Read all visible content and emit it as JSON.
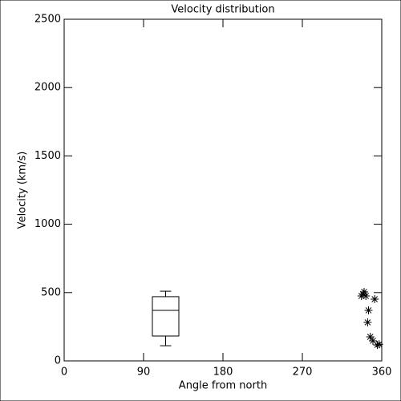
{
  "chart_data": {
    "type": "box",
    "title": "Velocity distribution",
    "xlabel": "Angle from north",
    "ylabel": "Velocity (km/s)",
    "xlim": [
      0,
      360
    ],
    "xticks": [
      0,
      90,
      180,
      270,
      360
    ],
    "ylim": [
      0,
      2500
    ],
    "yticks": [
      0,
      500,
      1000,
      1500,
      2000,
      2500
    ],
    "boxes": [
      {
        "x": 115,
        "whislo": 111,
        "q1": 182,
        "med": 370,
        "q3": 470,
        "whishi": 510
      }
    ],
    "points": {
      "x": [
        337,
        340,
        342,
        339,
        345,
        344,
        352,
        347,
        350,
        355,
        357
      ],
      "y": [
        475,
        505,
        475,
        490,
        370,
        282,
        452,
        176,
        147,
        117,
        122
      ]
    },
    "color": "#000000"
  }
}
